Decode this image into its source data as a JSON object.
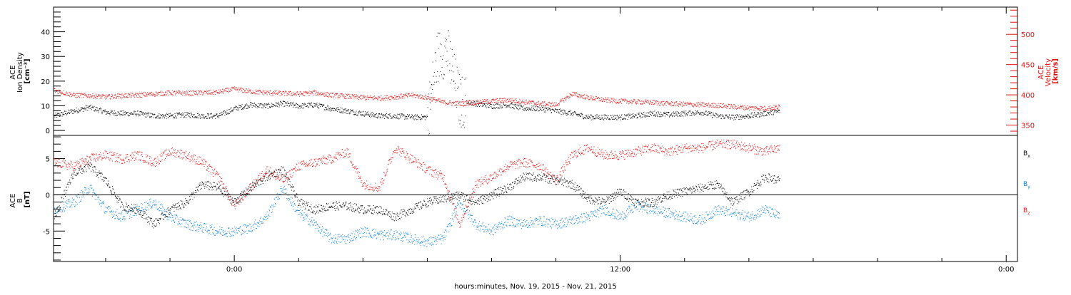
{
  "colors": {
    "black": "#000000",
    "red": "#e01010",
    "blue": "#0a7ad6",
    "frame": "#000000",
    "background": "#ffffff"
  },
  "x_axis": {
    "label": "hours:minutes, Nov. 19, 2015 - Nov. 21, 2015",
    "major_ticks": [
      {
        "hour": 0,
        "label": "0:00"
      },
      {
        "hour": 12,
        "label": "12:00"
      },
      {
        "hour": 24,
        "label": "0:00"
      }
    ],
    "range_hours": [
      -5.62,
      24.35
    ],
    "minor_tick_step_hours": 2
  },
  "chart_data": [
    {
      "type": "scatter",
      "panel": "top",
      "y_left_label_lines": [
        "ACE",
        "Ion Density",
        "[cm⁻³]"
      ],
      "y_right_label_lines": [
        "ACE",
        "Velocity",
        "[km/s]"
      ],
      "ylim_left": [
        -2,
        50
      ],
      "ylim_right": [
        333,
        545
      ],
      "left_ticks": [
        0,
        10,
        20,
        30,
        40
      ],
      "right_ticks": [
        350,
        400,
        450,
        500
      ],
      "data_end_hour": 16.95,
      "series": [
        {
          "name": "Ion Density",
          "axis": "left",
          "color": "black",
          "points_x_hours": [
            -5.6,
            -5.0,
            -4.5,
            -4.0,
            -3.5,
            -3.0,
            -2.5,
            -2.0,
            -1.5,
            -1.0,
            -0.5,
            0.0,
            0.5,
            1.0,
            1.5,
            2.0,
            2.5,
            3.0,
            3.5,
            4.0,
            4.5,
            5.0,
            5.5,
            6.0,
            6.3,
            6.6,
            7.0,
            7.5,
            8.0,
            8.5,
            9.0,
            9.5,
            10.0,
            10.5,
            11.0,
            11.5,
            12.0,
            12.5,
            13.0,
            13.5,
            14.0,
            14.5,
            15.0,
            15.5,
            16.0,
            16.5,
            16.95
          ],
          "values": [
            6,
            8,
            9.5,
            7.5,
            7,
            7,
            6,
            6,
            6.5,
            6,
            6,
            9,
            10.5,
            10,
            11,
            10,
            10.5,
            9,
            8,
            7,
            6,
            6,
            5.5,
            5.5,
            30,
            33,
            12,
            11,
            10,
            10.5,
            9,
            9,
            8,
            7,
            5.5,
            5.5,
            5.5,
            6,
            7,
            6.5,
            7,
            7.5,
            6,
            5.5,
            6,
            7,
            8
          ]
        },
        {
          "name": "Velocity",
          "axis": "right",
          "color": "red",
          "points_x_hours": [
            -5.6,
            -5.0,
            -4.5,
            -4.0,
            -3.5,
            -3.0,
            -2.5,
            -2.0,
            -1.5,
            -1.0,
            -0.5,
            0.0,
            0.5,
            1.0,
            1.5,
            2.0,
            2.5,
            3.0,
            3.5,
            4.0,
            4.5,
            5.0,
            5.5,
            6.0,
            6.5,
            7.0,
            7.5,
            8.0,
            8.5,
            9.0,
            9.5,
            10.0,
            10.5,
            11.0,
            11.5,
            12.0,
            12.5,
            13.0,
            13.5,
            14.0,
            14.5,
            15.0,
            15.5,
            16.0,
            16.5,
            16.95
          ],
          "values": [
            408,
            400,
            399,
            397,
            399,
            400,
            402,
            404,
            403,
            404,
            405,
            410,
            406,
            404,
            403,
            402,
            404,
            400,
            398,
            396,
            395,
            397,
            400,
            396,
            388,
            386,
            388,
            390,
            392,
            389,
            386,
            384,
            402,
            396,
            392,
            390,
            389,
            388,
            386,
            385,
            384,
            383,
            381,
            379,
            378,
            381
          ]
        }
      ]
    },
    {
      "type": "scatter",
      "panel": "bottom",
      "y_left_label_lines": [
        "ACE",
        "B",
        "[nT]"
      ],
      "ylim": [
        -9.2,
        8.2
      ],
      "left_ticks": [
        -5,
        0,
        5
      ],
      "zero_line": true,
      "data_end_hour": 16.95,
      "legend": [
        {
          "label": "B",
          "sub": "x",
          "color": "black"
        },
        {
          "label": "B",
          "sub": "y",
          "color": "blue"
        },
        {
          "label": "B",
          "sub": "z",
          "color": "red"
        }
      ],
      "series": [
        {
          "name": "Bx",
          "color": "black",
          "points_x_hours": [
            -5.6,
            -5.0,
            -4.5,
            -4.0,
            -3.5,
            -3.0,
            -2.5,
            -2.0,
            -1.5,
            -1.0,
            -0.5,
            0.0,
            0.5,
            1.0,
            1.5,
            2.0,
            2.5,
            3.0,
            3.5,
            4.0,
            4.5,
            5.0,
            5.5,
            6.0,
            6.5,
            7.0,
            7.5,
            8.0,
            8.5,
            9.0,
            9.5,
            10.0,
            10.5,
            11.0,
            11.5,
            12.0,
            12.5,
            13.0,
            13.5,
            14.0,
            14.5,
            15.0,
            15.5,
            16.0,
            16.5,
            16.95
          ],
          "values": [
            -3,
            3,
            4,
            2,
            -1.5,
            -2,
            -4,
            -2,
            -1,
            1.5,
            1,
            -1,
            1,
            2.5,
            3.5,
            -1,
            -2,
            -1.5,
            -1.5,
            -2,
            -2,
            -3,
            -2,
            -1,
            -0.5,
            0,
            -1,
            0,
            1,
            2.5,
            2.5,
            2,
            1.5,
            -0.5,
            -1,
            0.5,
            -1,
            -1,
            0,
            0.5,
            1,
            1.5,
            -1,
            0.5,
            2.5,
            2
          ]
        },
        {
          "name": "By",
          "color": "blue",
          "points_x_hours": [
            -5.6,
            -5.0,
            -4.5,
            -4.0,
            -3.5,
            -3.0,
            -2.5,
            -2.0,
            -1.5,
            -1.0,
            -0.5,
            0.0,
            0.5,
            1.0,
            1.5,
            2.0,
            2.5,
            3.0,
            3.5,
            4.0,
            4.5,
            5.0,
            5.5,
            6.0,
            6.5,
            7.0,
            7.5,
            8.0,
            8.5,
            9.0,
            9.5,
            10.0,
            10.5,
            11.0,
            11.5,
            12.0,
            12.5,
            13.0,
            13.5,
            14.0,
            14.5,
            15.0,
            15.5,
            16.0,
            16.5,
            16.95
          ],
          "values": [
            -2,
            -1,
            1,
            -2,
            -3,
            -2,
            -1,
            -3,
            -4,
            -4.5,
            -5,
            -5,
            -4.5,
            -3,
            1,
            -2.5,
            -4,
            -6,
            -6,
            -5,
            -5.5,
            -5.5,
            -6,
            -6.5,
            -6,
            -1,
            -4,
            -5,
            -3.5,
            -4,
            -3.5,
            -4,
            -3.5,
            -3,
            -2,
            -3,
            -1.5,
            -2,
            -2.5,
            -3,
            -3.5,
            -2,
            -2.5,
            -3,
            -2,
            -3
          ]
        },
        {
          "name": "Bz",
          "color": "red",
          "points_x_hours": [
            -5.6,
            -5.0,
            -4.5,
            -4.0,
            -3.5,
            -3.0,
            -2.5,
            -2.0,
            -1.5,
            -1.0,
            -0.5,
            0.0,
            0.5,
            1.0,
            1.5,
            2.0,
            2.5,
            3.0,
            3.5,
            4.0,
            4.5,
            5.0,
            5.5,
            6.0,
            6.5,
            7.0,
            7.5,
            8.0,
            8.5,
            9.0,
            9.5,
            10.0,
            10.5,
            11.0,
            11.5,
            12.0,
            12.5,
            13.0,
            13.5,
            14.0,
            14.5,
            15.0,
            15.5,
            16.0,
            16.5,
            16.95
          ],
          "values": [
            4.5,
            4,
            5,
            5.5,
            5,
            5.5,
            4.5,
            6,
            5.5,
            4.5,
            2.5,
            -1.5,
            1,
            3.5,
            2,
            4,
            4.5,
            5,
            6,
            1.5,
            1,
            6.5,
            5,
            3.5,
            2.5,
            -4,
            1.5,
            2.5,
            4,
            4.5,
            4,
            2,
            5.5,
            6.5,
            5.5,
            5.5,
            6,
            6.5,
            6,
            6.5,
            6.5,
            7,
            7,
            6.5,
            6,
            6.5
          ]
        }
      ]
    }
  ]
}
